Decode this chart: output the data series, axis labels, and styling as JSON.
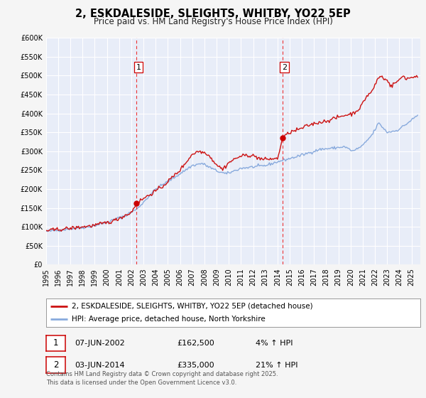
{
  "title": "2, ESKDALESIDE, SLEIGHTS, WHITBY, YO22 5EP",
  "subtitle": "Price paid vs. HM Land Registry's House Price Index (HPI)",
  "background_color": "#f5f5f5",
  "plot_bg_color": "#e8edf8",
  "grid_color": "#ffffff",
  "ylim": [
    0,
    600000
  ],
  "yticks": [
    0,
    50000,
    100000,
    150000,
    200000,
    250000,
    300000,
    350000,
    400000,
    450000,
    500000,
    550000,
    600000
  ],
  "ytick_labels": [
    "£0",
    "£50K",
    "£100K",
    "£150K",
    "£200K",
    "£250K",
    "£300K",
    "£350K",
    "£400K",
    "£450K",
    "£500K",
    "£550K",
    "£600K"
  ],
  "xlim_start": 1995.0,
  "xlim_end": 2025.7,
  "xticks": [
    1995,
    1996,
    1997,
    1998,
    1999,
    2000,
    2001,
    2002,
    2003,
    2004,
    2005,
    2006,
    2007,
    2008,
    2009,
    2010,
    2011,
    2012,
    2013,
    2014,
    2015,
    2016,
    2017,
    2018,
    2019,
    2020,
    2021,
    2022,
    2023,
    2024,
    2025
  ],
  "sale1_x": 2002.44,
  "sale1_y": 162500,
  "sale1_label": "1",
  "sale2_x": 2014.42,
  "sale2_y": 335000,
  "sale2_label": "2",
  "vline_color": "#ee3333",
  "sale_marker_color": "#cc0000",
  "property_line_color": "#cc1111",
  "hpi_line_color": "#88aadd",
  "legend_line1": "2, ESKDALESIDE, SLEIGHTS, WHITBY, YO22 5EP (detached house)",
  "legend_line2": "HPI: Average price, detached house, North Yorkshire",
  "table_row1": [
    "1",
    "07-JUN-2002",
    "£162,500",
    "4% ↑ HPI"
  ],
  "table_row2": [
    "2",
    "03-JUN-2014",
    "£335,000",
    "21% ↑ HPI"
  ],
  "footer_text": "Contains HM Land Registry data © Crown copyright and database right 2025.\nThis data is licensed under the Open Government Licence v3.0.",
  "title_fontsize": 10.5,
  "subtitle_fontsize": 8.5,
  "tick_fontsize": 7,
  "legend_fontsize": 7.5,
  "table_fontsize": 8,
  "footer_fontsize": 6
}
